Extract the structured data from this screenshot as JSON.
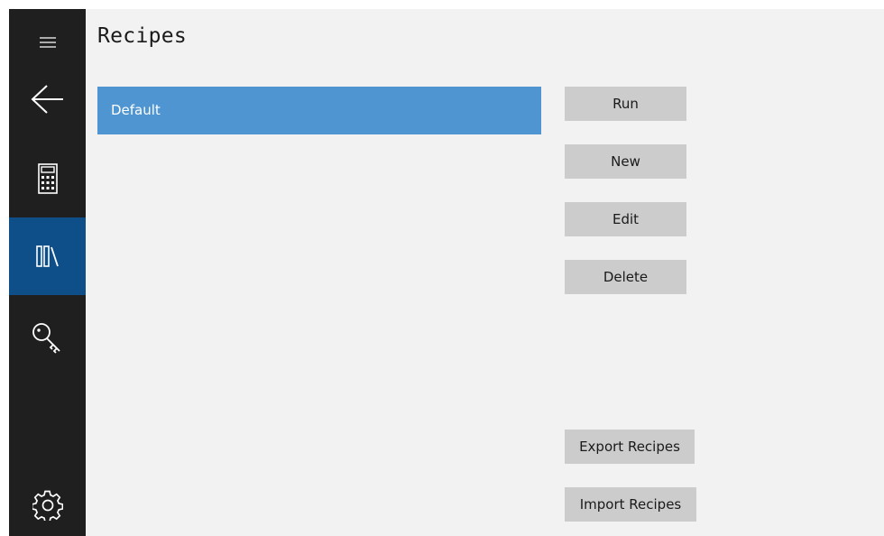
{
  "page": {
    "title": "Recipes"
  },
  "sidebar": {
    "items": [
      {
        "name": "hamburger-menu",
        "icon": "hamburger-icon"
      },
      {
        "name": "back",
        "icon": "back-arrow-icon"
      },
      {
        "name": "calculator",
        "icon": "calculator-icon"
      },
      {
        "name": "recipes",
        "icon": "library-icon",
        "active": true
      },
      {
        "name": "keys",
        "icon": "key-icon"
      },
      {
        "name": "settings",
        "icon": "gear-icon"
      }
    ],
    "active_color": "#0e4f8a",
    "background_color": "#1f1f1f"
  },
  "recipes": {
    "items": [
      "Default"
    ],
    "selected": "Default",
    "selected_color": "#4f95d2"
  },
  "actions": {
    "run_label": "Run",
    "new_label": "New",
    "edit_label": "Edit",
    "delete_label": "Delete",
    "export_label": "Export Recipes",
    "import_label": "Import Recipes"
  }
}
